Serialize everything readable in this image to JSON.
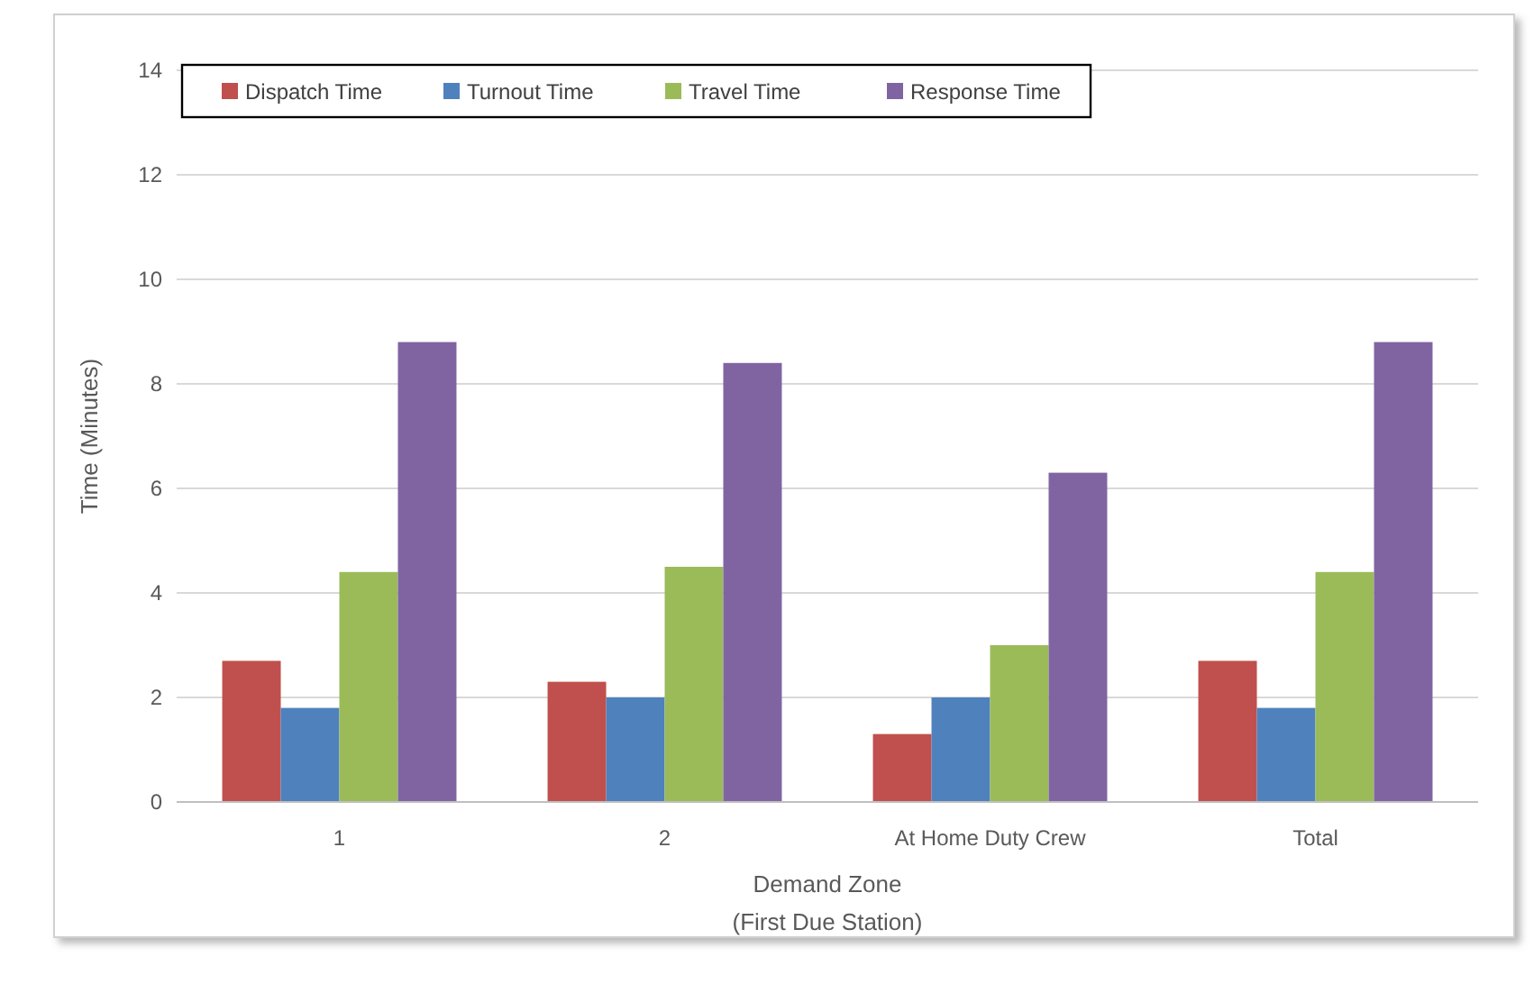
{
  "chart_data": {
    "type": "bar",
    "xlabel": "Demand Zone\n(First Due Station)",
    "ylabel": "Time (Minutes)",
    "categories": [
      "1",
      "2",
      "At Home Duty Crew",
      "Total"
    ],
    "series": [
      {
        "name": "Dispatch Time",
        "color": "#c0504d",
        "values": [
          2.7,
          2.3,
          1.3,
          2.7
        ]
      },
      {
        "name": "Turnout Time",
        "color": "#4f81bd",
        "values": [
          1.8,
          2.0,
          2.0,
          1.8
        ]
      },
      {
        "name": "Travel Time",
        "color": "#9bbb59",
        "values": [
          4.4,
          4.5,
          3.0,
          4.4
        ]
      },
      {
        "name": "Response Time",
        "color": "#8064a2",
        "values": [
          8.8,
          8.4,
          6.3,
          8.8
        ]
      }
    ],
    "ylim": [
      0,
      14
    ],
    "yticks": [
      0,
      2,
      4,
      6,
      8,
      10,
      12,
      14
    ],
    "grid": "y",
    "legend": "top left"
  }
}
